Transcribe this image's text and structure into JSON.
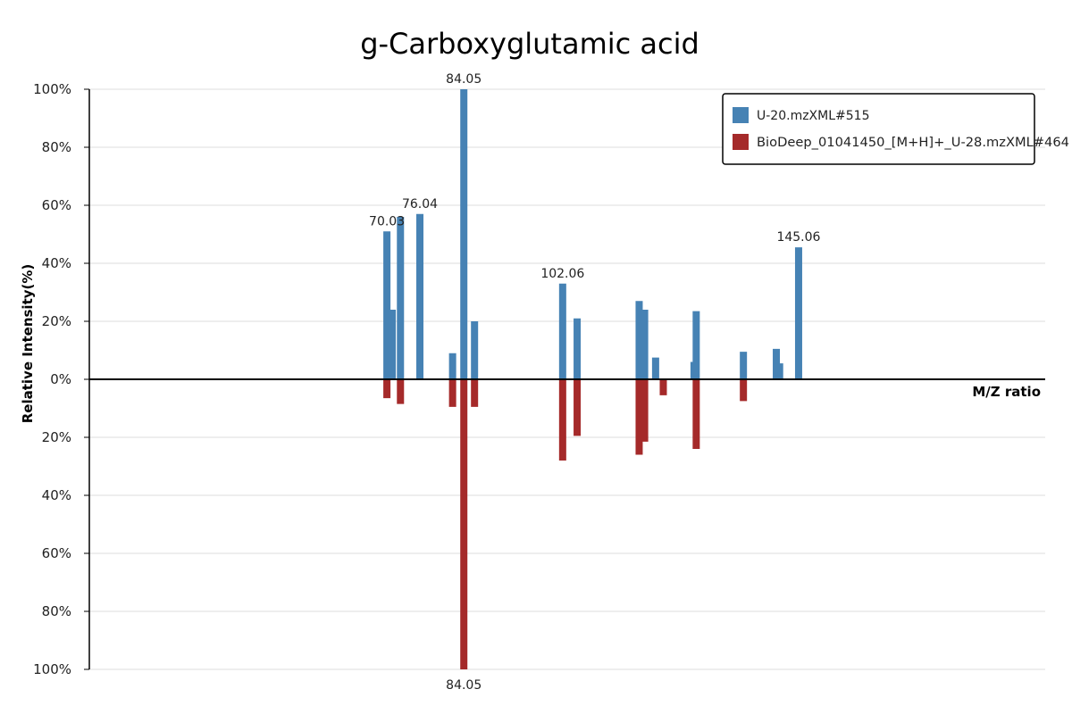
{
  "colors": {
    "top": "#4682b4",
    "bottom": "#a52a2a",
    "grid": "#dddddd",
    "axis": "#000000"
  },
  "chart_data": {
    "type": "bar",
    "title": "g-Carboxyglutamic acid",
    "xlabel": "M/Z ratio",
    "ylabel": "Relative Intensity(%)",
    "xlim": [
      15.8,
      190
    ],
    "ylim": [
      -100,
      100
    ],
    "y_ticks": [
      {
        "v": 100,
        "label": "100%"
      },
      {
        "v": 80,
        "label": "80%"
      },
      {
        "v": 60,
        "label": "60%"
      },
      {
        "v": 40,
        "label": "40%"
      },
      {
        "v": 20,
        "label": "20%"
      },
      {
        "v": 0,
        "label": "0%"
      },
      {
        "v": -20,
        "label": "20%"
      },
      {
        "v": -40,
        "label": "40%"
      },
      {
        "v": -60,
        "label": "60%"
      },
      {
        "v": -80,
        "label": "80%"
      },
      {
        "v": -100,
        "label": "100%"
      }
    ],
    "grid": true,
    "legend_position": "top-right",
    "series": [
      {
        "name": "U-20.mzXML#515",
        "peaks": [
          {
            "mz": 70.03,
            "intensity": 51,
            "label": "70.03"
          },
          {
            "mz": 71.0,
            "intensity": 24
          },
          {
            "mz": 72.5,
            "intensity": 56
          },
          {
            "mz": 76.04,
            "intensity": 57,
            "label": "76.04"
          },
          {
            "mz": 82.0,
            "intensity": 9
          },
          {
            "mz": 84.05,
            "intensity": 100,
            "label": "84.05"
          },
          {
            "mz": 86.0,
            "intensity": 20
          },
          {
            "mz": 102.06,
            "intensity": 33,
            "label": "102.06"
          },
          {
            "mz": 104.7,
            "intensity": 21
          },
          {
            "mz": 116.0,
            "intensity": 27
          },
          {
            "mz": 117.0,
            "intensity": 24
          },
          {
            "mz": 119.0,
            "intensity": 7.5
          },
          {
            "mz": 145.06,
            "intensity": 45.5,
            "label": "145.06"
          },
          {
            "mz": 126.0,
            "intensity": 6
          },
          {
            "mz": 126.4,
            "intensity": 23.5
          },
          {
            "mz": 135.0,
            "intensity": 9.5
          },
          {
            "mz": 141.0,
            "intensity": 10.5
          },
          {
            "mz": 141.6,
            "intensity": 5.5
          }
        ]
      },
      {
        "name": "BioDeep_01041450_[M+H]+_U-28.mzXML#464",
        "peaks": [
          {
            "mz": 70.03,
            "intensity": 6.5
          },
          {
            "mz": 72.5,
            "intensity": 8.5
          },
          {
            "mz": 82.0,
            "intensity": 9.5
          },
          {
            "mz": 84.05,
            "intensity": 100,
            "label": "84.05"
          },
          {
            "mz": 86.0,
            "intensity": 9.5
          },
          {
            "mz": 102.06,
            "intensity": 28
          },
          {
            "mz": 104.7,
            "intensity": 19.5
          },
          {
            "mz": 116.0,
            "intensity": 26
          },
          {
            "mz": 117.0,
            "intensity": 21.5
          },
          {
            "mz": 120.4,
            "intensity": 5.5
          },
          {
            "mz": 126.4,
            "intensity": 24
          },
          {
            "mz": 135.0,
            "intensity": 7.5
          }
        ]
      }
    ]
  }
}
